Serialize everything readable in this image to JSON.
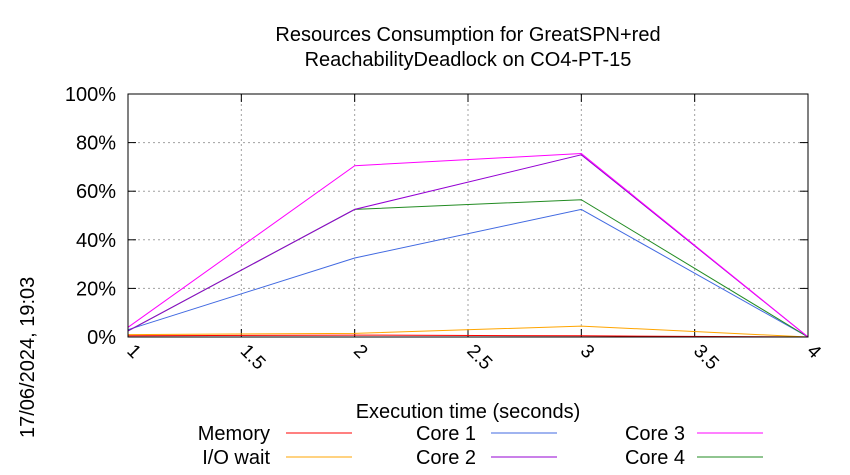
{
  "chart_data": {
    "type": "line",
    "title": [
      "Resources Consumption for GreatSPN+red",
      "ReachabilityDeadlock on CO4-PT-15"
    ],
    "xlabel": "Execution time (seconds)",
    "ylabel": "",
    "x": [
      1,
      2,
      3,
      4
    ],
    "xlim": [
      1,
      4
    ],
    "ylim": [
      0,
      100
    ],
    "xticks": [
      "1",
      "1.5",
      "2",
      "2.5",
      "3",
      "3.5",
      "4"
    ],
    "xtick_values": [
      1,
      1.5,
      2,
      2.5,
      3,
      3.5,
      4
    ],
    "yticks": [
      "0%",
      "20%",
      "40%",
      "60%",
      "80%",
      "100%"
    ],
    "ytick_values": [
      0,
      20,
      40,
      60,
      80,
      100
    ],
    "grid": true,
    "legend_position": "bottom",
    "series": [
      {
        "name": "Memory",
        "color": "#ff0000",
        "values": [
          0.5,
          0.8,
          0.5,
          0
        ]
      },
      {
        "name": "I/O wait",
        "color": "#ffa500",
        "values": [
          1,
          1.5,
          4.5,
          0
        ]
      },
      {
        "name": "Core 1",
        "color": "#4169e1",
        "values": [
          3,
          32.5,
          52.5,
          0
        ]
      },
      {
        "name": "Core 2",
        "color": "#9400d3",
        "values": [
          2.5,
          52.5,
          75,
          0
        ]
      },
      {
        "name": "Core 3",
        "color": "#ff00ff",
        "values": [
          4,
          70.5,
          75.5,
          0
        ]
      },
      {
        "name": "Core 4",
        "color": "#228b22",
        "values": [
          2.5,
          52.5,
          56.5,
          0
        ]
      }
    ]
  },
  "timestamp": "17/06/2024, 19:03"
}
